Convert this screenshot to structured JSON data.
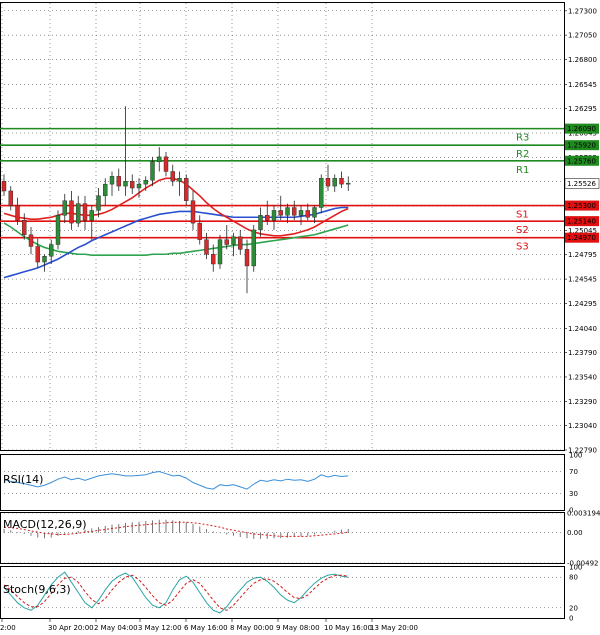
{
  "chart_data": {
    "type": "candlestick",
    "instrument_colors": {
      "up": "#2e8b3a",
      "down": "#d62b2b",
      "resistance": "#1f8a1f",
      "support": "#e01010",
      "ma_fast": "#e02020",
      "ma_mid": "#2a4fd0",
      "ma_slow": "#2ea44f",
      "rsi": "#3a8fd8",
      "macd": "#d02020",
      "stoch_main": "#2aa5a5",
      "stoch_signal": "#d02020"
    },
    "y_ticks": [
      "1.27300",
      "1.27050",
      "1.26800",
      "1.26545",
      "1.26295",
      "1.26045",
      "1.25795",
      "1.25545",
      "1.25295",
      "1.25045",
      "1.24795",
      "1.24545",
      "1.24295",
      "1.24040",
      "1.23790",
      "1.23540",
      "1.23290",
      "1.23040",
      "1.22790"
    ],
    "ylim": [
      1.2279,
      1.2738
    ],
    "x_ticks": [
      "2:00",
      "30 Apr 20:00",
      "2 May 04:00",
      "3 May 12:00",
      "6 May 16:00",
      "8 May 00:00",
      "9 May 08:00",
      "10 May 16:00",
      "13 May 20:00"
    ],
    "levels": [
      {
        "label": "R3",
        "value": 1.2609,
        "value_text": "1.26090",
        "kind": "resistance"
      },
      {
        "label": "R2",
        "value": 1.2592,
        "value_text": "1.25920",
        "kind": "resistance"
      },
      {
        "label": "R1",
        "value": 1.2576,
        "value_text": "1.25760",
        "kind": "resistance"
      },
      {
        "label": "S1",
        "value": 1.253,
        "value_text": "1.25300",
        "kind": "support"
      },
      {
        "label": "S2",
        "value": 1.2514,
        "value_text": "1.25140",
        "kind": "support"
      },
      {
        "label": "S3",
        "value": 1.2497,
        "value_text": "1.24970",
        "kind": "support"
      }
    ],
    "current_price": {
      "value": 1.25526,
      "text": "1.25526"
    },
    "candles": [
      [
        1.2555,
        1.2562,
        1.254,
        1.2545
      ],
      [
        1.2545,
        1.255,
        1.2525,
        1.253
      ],
      [
        1.253,
        1.2538,
        1.251,
        1.2515
      ],
      [
        1.2515,
        1.2522,
        1.2495,
        1.25
      ],
      [
        1.25,
        1.2508,
        1.248,
        1.2488
      ],
      [
        1.2488,
        1.2496,
        1.2466,
        1.2472
      ],
      [
        1.2472,
        1.248,
        1.2462,
        1.2478
      ],
      [
        1.2478,
        1.2495,
        1.247,
        1.249
      ],
      [
        1.249,
        1.2525,
        1.2485,
        1.252
      ],
      [
        1.252,
        1.2542,
        1.2512,
        1.2535
      ],
      [
        1.2535,
        1.2545,
        1.2505,
        1.2512
      ],
      [
        1.2512,
        1.254,
        1.2508,
        1.2532
      ],
      [
        1.2532,
        1.254,
        1.2505,
        1.2515
      ],
      [
        1.2515,
        1.253,
        1.2495,
        1.2525
      ],
      [
        1.2525,
        1.2548,
        1.2518,
        1.254
      ],
      [
        1.254,
        1.2558,
        1.253,
        1.2552
      ],
      [
        1.2552,
        1.2565,
        1.254,
        1.256
      ],
      [
        1.256,
        1.2568,
        1.2545,
        1.255
      ],
      [
        1.255,
        1.2632,
        1.254,
        1.2555
      ],
      [
        1.2555,
        1.2562,
        1.2542,
        1.2548
      ],
      [
        1.2548,
        1.2558,
        1.2538,
        1.2552
      ],
      [
        1.2552,
        1.256,
        1.2545,
        1.2556
      ],
      [
        1.2556,
        1.258,
        1.255,
        1.2575
      ],
      [
        1.2575,
        1.259,
        1.2565,
        1.258
      ],
      [
        1.258,
        1.2585,
        1.256,
        1.2565
      ],
      [
        1.2565,
        1.2572,
        1.255,
        1.2555
      ],
      [
        1.2555,
        1.2565,
        1.254,
        1.2558
      ],
      [
        1.2558,
        1.2562,
        1.253,
        1.2535
      ],
      [
        1.2535,
        1.2545,
        1.2505,
        1.2512
      ],
      [
        1.2512,
        1.252,
        1.249,
        1.2495
      ],
      [
        1.2495,
        1.2502,
        1.2475,
        1.248
      ],
      [
        1.248,
        1.249,
        1.2462,
        1.247
      ],
      [
        1.247,
        1.25,
        1.2465,
        1.2495
      ],
      [
        1.2495,
        1.251,
        1.2485,
        1.249
      ],
      [
        1.249,
        1.2502,
        1.2478,
        1.2498
      ],
      [
        1.2498,
        1.2505,
        1.248,
        1.2485
      ],
      [
        1.2485,
        1.2495,
        1.244,
        1.2468
      ],
      [
        1.2468,
        1.251,
        1.2462,
        1.2505
      ],
      [
        1.2505,
        1.2528,
        1.2498,
        1.252
      ],
      [
        1.252,
        1.2535,
        1.251,
        1.2515
      ],
      [
        1.2515,
        1.253,
        1.2505,
        1.2525
      ],
      [
        1.2525,
        1.254,
        1.2515,
        1.252
      ],
      [
        1.252,
        1.2532,
        1.2512,
        1.2528
      ],
      [
        1.2528,
        1.2535,
        1.2515,
        1.252
      ],
      [
        1.252,
        1.253,
        1.251,
        1.2525
      ],
      [
        1.2525,
        1.2532,
        1.2515,
        1.2518
      ],
      [
        1.2518,
        1.253,
        1.2512,
        1.2528
      ],
      [
        1.2528,
        1.2562,
        1.2522,
        1.2558
      ],
      [
        1.2558,
        1.2572,
        1.2545,
        1.255
      ],
      [
        1.255,
        1.2562,
        1.2544,
        1.2558
      ],
      [
        1.2558,
        1.2565,
        1.2548,
        1.2552
      ],
      [
        1.2552,
        1.256,
        1.2545,
        1.2553
      ]
    ],
    "ma_fast": [
      1.2522,
      1.252,
      1.2518,
      1.2517,
      1.2516,
      1.2516,
      1.2517,
      1.2518,
      1.252,
      1.2522,
      1.2522,
      1.2521,
      1.252,
      1.252,
      1.2521,
      1.2523,
      1.2526,
      1.253,
      1.2534,
      1.2538,
      1.2543,
      1.2548,
      1.2552,
      1.2556,
      1.2558,
      1.2558,
      1.2556,
      1.2552,
      1.2546,
      1.254,
      1.2533,
      1.2527,
      1.2522,
      1.2518,
      1.2514,
      1.251,
      1.2506,
      1.2503,
      1.2501,
      1.25,
      1.2499,
      1.2499,
      1.25,
      1.2501,
      1.2503,
      1.2505,
      1.2508,
      1.2512,
      1.2516,
      1.252,
      1.2524,
      1.2527
    ],
    "ma_mid": [
      1.2456,
      1.2458,
      1.246,
      1.2462,
      1.2464,
      1.2466,
      1.2469,
      1.2472,
      1.2475,
      1.2479,
      1.2483,
      1.2487,
      1.249,
      1.2494,
      1.2497,
      1.25,
      1.2503,
      1.2506,
      1.2509,
      1.2512,
      1.2515,
      1.2517,
      1.2519,
      1.2521,
      1.2522,
      1.2523,
      1.2524,
      1.2524,
      1.2524,
      1.2523,
      1.2522,
      1.2521,
      1.252,
      1.2519,
      1.2518,
      1.2518,
      1.2518,
      1.2518,
      1.2518,
      1.2518,
      1.2518,
      1.2518,
      1.2518,
      1.2518,
      1.2519,
      1.252,
      1.2521,
      1.2523,
      1.2525,
      1.2527,
      1.2528,
      1.2528
    ],
    "ma_slow": [
      1.2512,
      1.2508,
      1.2503,
      1.2498,
      1.2494,
      1.249,
      1.2487,
      1.2485,
      1.2483,
      1.2482,
      1.2481,
      1.248,
      1.248,
      1.2479,
      1.2479,
      1.2479,
      1.2479,
      1.2479,
      1.2479,
      1.2479,
      1.2479,
      1.2479,
      1.248,
      1.248,
      1.248,
      1.2481,
      1.2481,
      1.2482,
      1.2483,
      1.2484,
      1.2485,
      1.2486,
      1.2487,
      1.2488,
      1.2489,
      1.249,
      1.249,
      1.2491,
      1.2492,
      1.2493,
      1.2494,
      1.2495,
      1.2496,
      1.2497,
      1.2498,
      1.2499,
      1.25,
      1.2502,
      1.2504,
      1.2506,
      1.2508,
      1.251
    ],
    "rsi": {
      "label": "RSI(14)",
      "ticks": [
        "100",
        "70",
        "30",
        "0"
      ],
      "values": [
        55,
        52,
        50,
        48,
        45,
        42,
        45,
        50,
        56,
        60,
        55,
        58,
        54,
        58,
        62,
        64,
        66,
        64,
        62,
        62,
        63,
        64,
        68,
        70,
        66,
        62,
        63,
        58,
        50,
        45,
        40,
        38,
        46,
        44,
        46,
        42,
        38,
        47,
        54,
        52,
        55,
        53,
        56,
        54,
        55,
        52,
        56,
        64,
        60,
        63,
        61,
        62
      ]
    },
    "macd": {
      "label": "MACD(12,26,9)",
      "ticks": [
        "0.003194",
        "0.00",
        "-0.00492"
      ],
      "values": [
        0.0006,
        0.0004,
        0.0001,
        -0.0002,
        -0.0005,
        -0.0008,
        -0.0009,
        -0.0008,
        -0.0005,
        -0.0002,
        0.0,
        0.0003,
        0.0005,
        0.0007,
        0.0009,
        0.0011,
        0.0013,
        0.0014,
        0.0016,
        0.0017,
        0.0018,
        0.0019,
        0.002,
        0.0021,
        0.0021,
        0.002,
        0.0019,
        0.0017,
        0.0014,
        0.001,
        0.0006,
        0.0002,
        -0.0001,
        -0.0003,
        -0.0005,
        -0.0007,
        -0.0009,
        -0.001,
        -0.001,
        -0.001,
        -0.0009,
        -0.0009,
        -0.0008,
        -0.0007,
        -0.0006,
        -0.0005,
        -0.0003,
        -0.0001,
        0.0001,
        0.0003,
        0.0005,
        0.0006
      ],
      "signal": [
        0.0009,
        0.0008,
        0.0007,
        0.0005,
        0.0003,
        0.0001,
        -0.0001,
        -0.0002,
        -0.0003,
        -0.0003,
        -0.0002,
        -0.0001,
        0.0001,
        0.0002,
        0.0004,
        0.0005,
        0.0007,
        0.0008,
        0.001,
        0.0011,
        0.0012,
        0.0013,
        0.0014,
        0.0015,
        0.0016,
        0.0017,
        0.0017,
        0.0017,
        0.0016,
        0.0015,
        0.0013,
        0.0011,
        0.0009,
        0.0006,
        0.0004,
        0.0002,
        0.0,
        -0.0002,
        -0.0003,
        -0.0004,
        -0.0005,
        -0.0006,
        -0.0006,
        -0.0006,
        -0.0006,
        -0.0006,
        -0.0005,
        -0.0004,
        -0.0003,
        -0.0002,
        -0.0001,
        0.0001
      ]
    },
    "stoch": {
      "label": "Stoch(9,6,3)",
      "ticks": [
        "100",
        "80",
        "20",
        "0"
      ],
      "k": [
        60,
        45,
        30,
        20,
        15,
        25,
        45,
        65,
        80,
        90,
        70,
        50,
        30,
        20,
        35,
        55,
        72,
        82,
        88,
        80,
        60,
        40,
        25,
        20,
        30,
        55,
        75,
        82,
        70,
        50,
        30,
        15,
        10,
        22,
        40,
        55,
        70,
        78,
        80,
        72,
        60,
        45,
        35,
        30,
        40,
        55,
        68,
        78,
        84,
        86,
        82,
        80
      ],
      "d": [
        65,
        55,
        42,
        30,
        22,
        22,
        32,
        48,
        65,
        78,
        80,
        70,
        52,
        36,
        28,
        38,
        55,
        70,
        80,
        84,
        75,
        60,
        44,
        30,
        25,
        35,
        52,
        68,
        75,
        68,
        52,
        35,
        20,
        15,
        25,
        40,
        55,
        68,
        75,
        77,
        72,
        62,
        50,
        40,
        38,
        45,
        58,
        70,
        78,
        83,
        84,
        82
      ]
    }
  }
}
